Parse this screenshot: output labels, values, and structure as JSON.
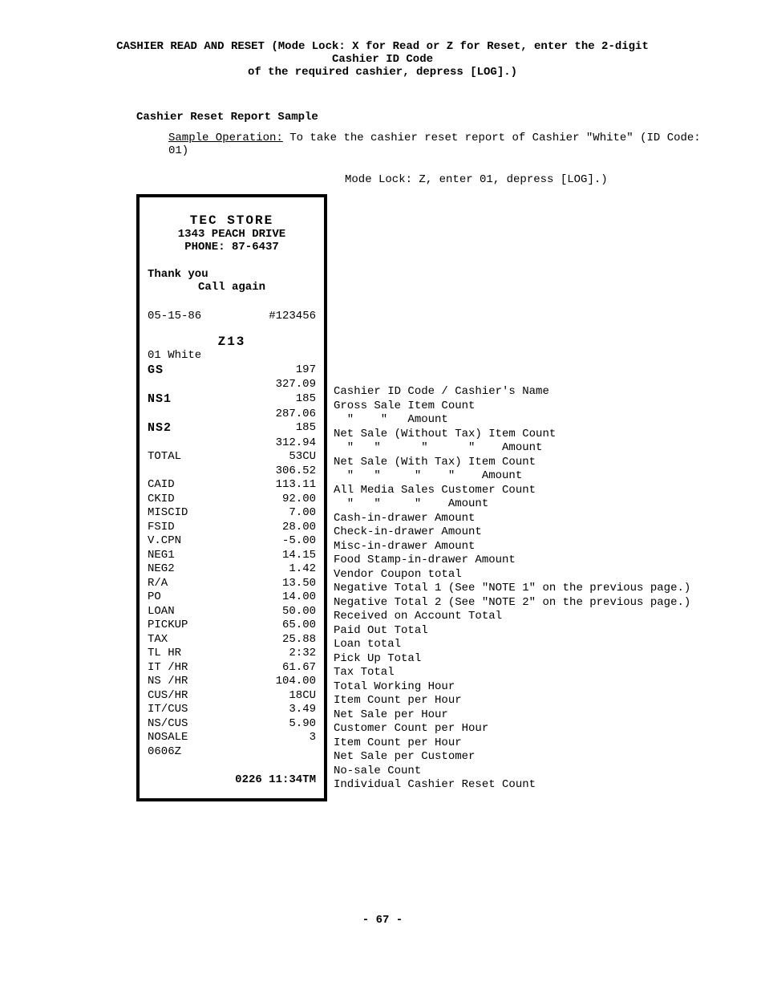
{
  "header": {
    "line1_bold": "CASHIER READ AND RESET",
    "line1_rest": " (Mode Lock: X for Read or Z for Reset, enter the 2-digit Cashier ID Code",
    "line2": "of the required cashier, depress [LOG].)"
  },
  "section_title": "Cashier Reset Report Sample",
  "sample_op": {
    "label": "Sample Operation:",
    "text": "  To take the cashier reset report of Cashier \"White\" (ID Code: 01)"
  },
  "mode_lock": "Mode Lock: Z,  enter 01, depress [LOG].)",
  "receipt": {
    "store_name": "TEC STORE",
    "addr": "1343 PEACH DRIVE",
    "phone": "PHONE: 87-6437",
    "thank": "Thank you",
    "call": "Call again",
    "date": "05-15-86",
    "serial": "#123456",
    "zcode": "Z13",
    "cashier": "01 White",
    "rows": [
      {
        "lbl": "GS",
        "val": "197",
        "bold": true
      },
      {
        "lbl": "",
        "val": "327.09"
      },
      {
        "lbl": "NS1",
        "val": "185",
        "bold": true
      },
      {
        "lbl": "",
        "val": "287.06"
      },
      {
        "lbl": "NS2",
        "val": "185",
        "bold": true
      },
      {
        "lbl": "",
        "val": "312.94"
      },
      {
        "lbl": "TOTAL",
        "val": "53CU"
      },
      {
        "lbl": "",
        "val": "306.52"
      },
      {
        "lbl": "CAID",
        "val": "113.11"
      },
      {
        "lbl": "CKID",
        "val": "92.00"
      },
      {
        "lbl": "MISCID",
        "val": "7.00"
      },
      {
        "lbl": "FSID",
        "val": "28.00"
      },
      {
        "lbl": "V.CPN",
        "val": "-5.00"
      },
      {
        "lbl": "NEG1",
        "val": "14.15"
      },
      {
        "lbl": "NEG2",
        "val": "1.42"
      },
      {
        "lbl": "R/A",
        "val": "13.50"
      },
      {
        "lbl": "PO",
        "val": "14.00"
      },
      {
        "lbl": "LOAN",
        "val": "50.00"
      },
      {
        "lbl": "PICKUP",
        "val": "65.00"
      },
      {
        "lbl": "TAX",
        "val": "25.88"
      },
      {
        "lbl": "TL HR",
        "val": "2:32"
      },
      {
        "lbl": "IT /HR",
        "val": "61.67"
      },
      {
        "lbl": "NS /HR",
        "val": "104.00"
      },
      {
        "lbl": "CUS/HR",
        "val": "18CU"
      },
      {
        "lbl": "IT/CUS",
        "val": "3.49"
      },
      {
        "lbl": "NS/CUS",
        "val": "5.90"
      },
      {
        "lbl": "NOSALE",
        "val": "3"
      },
      {
        "lbl": "0606Z",
        "val": ""
      }
    ],
    "footer": "0226 11:34TM"
  },
  "annotations": [
    "Cashier ID Code / Cashier's Name",
    "Gross Sale Item Count",
    "  \"    \"   Amount",
    "Net Sale (Without Tax) Item Count",
    "  \"   \"      \"      \"    Amount",
    "Net Sale (With Tax) Item Count",
    "  \"   \"     \"    \"    Amount",
    "All Media Sales Customer Count",
    "  \"   \"     \"    Amount",
    "Cash-in-drawer Amount",
    "Check-in-drawer Amount",
    "Misc-in-drawer Amount",
    "Food Stamp-in-drawer Amount",
    "Vendor Coupon total",
    "Negative Total 1 (See \"NOTE 1\" on the previous page.)",
    "Negative Total 2 (See \"NOTE 2\" on the previous page.)",
    "Received on Account Total",
    "Paid Out Total",
    "Loan total",
    "Pick Up Total",
    "Tax Total",
    "Total Working Hour",
    "Item Count per Hour",
    "Net Sale per Hour",
    "Customer Count per Hour",
    "Item Count per Hour",
    "Net Sale per Customer",
    "No-sale Count",
    "Individual Cashier Reset Count"
  ],
  "page_number": "- 67 -"
}
